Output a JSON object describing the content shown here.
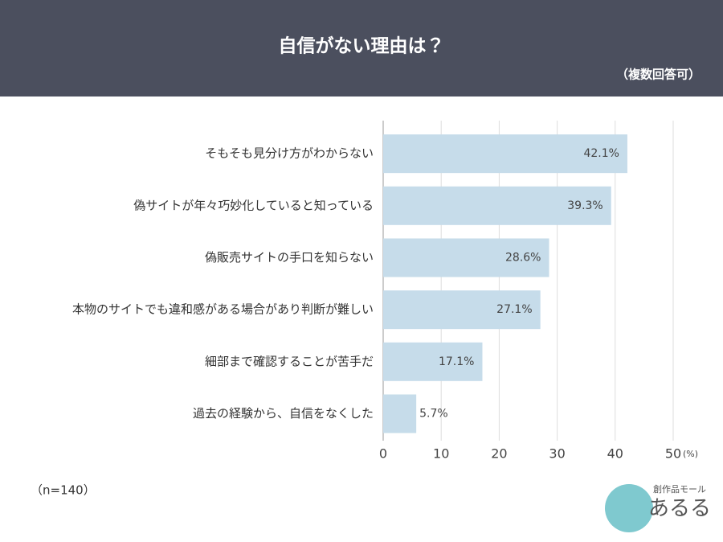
{
  "chart_data": {
    "type": "bar",
    "orientation": "horizontal",
    "title": "自信がない理由は？",
    "subtitle": "（複数回答可）",
    "categories": [
      "そもそも見分け方がわからない",
      "偽サイトが年々巧妙化していると知っている",
      "偽販売サイトの手口を知らない",
      "本物のサイトでも違和感がある場合があり判断が難しい",
      "細部まで確認することが苦手だ",
      "過去の経験から、自信をなくした"
    ],
    "values": [
      42.1,
      39.3,
      28.6,
      27.1,
      17.1,
      5.7
    ],
    "value_labels": [
      "42.1%",
      "39.3%",
      "28.6%",
      "27.1%",
      "17.1%",
      "5.7%"
    ],
    "color": "#c6dcea",
    "xlim": [
      0,
      50
    ],
    "xticks": [
      0,
      10,
      20,
      30,
      40,
      50
    ],
    "x_unit": "(%)",
    "grid": true,
    "note": "（n=140）"
  },
  "logo": {
    "tagline": "創作品モール",
    "name": "あるる"
  }
}
